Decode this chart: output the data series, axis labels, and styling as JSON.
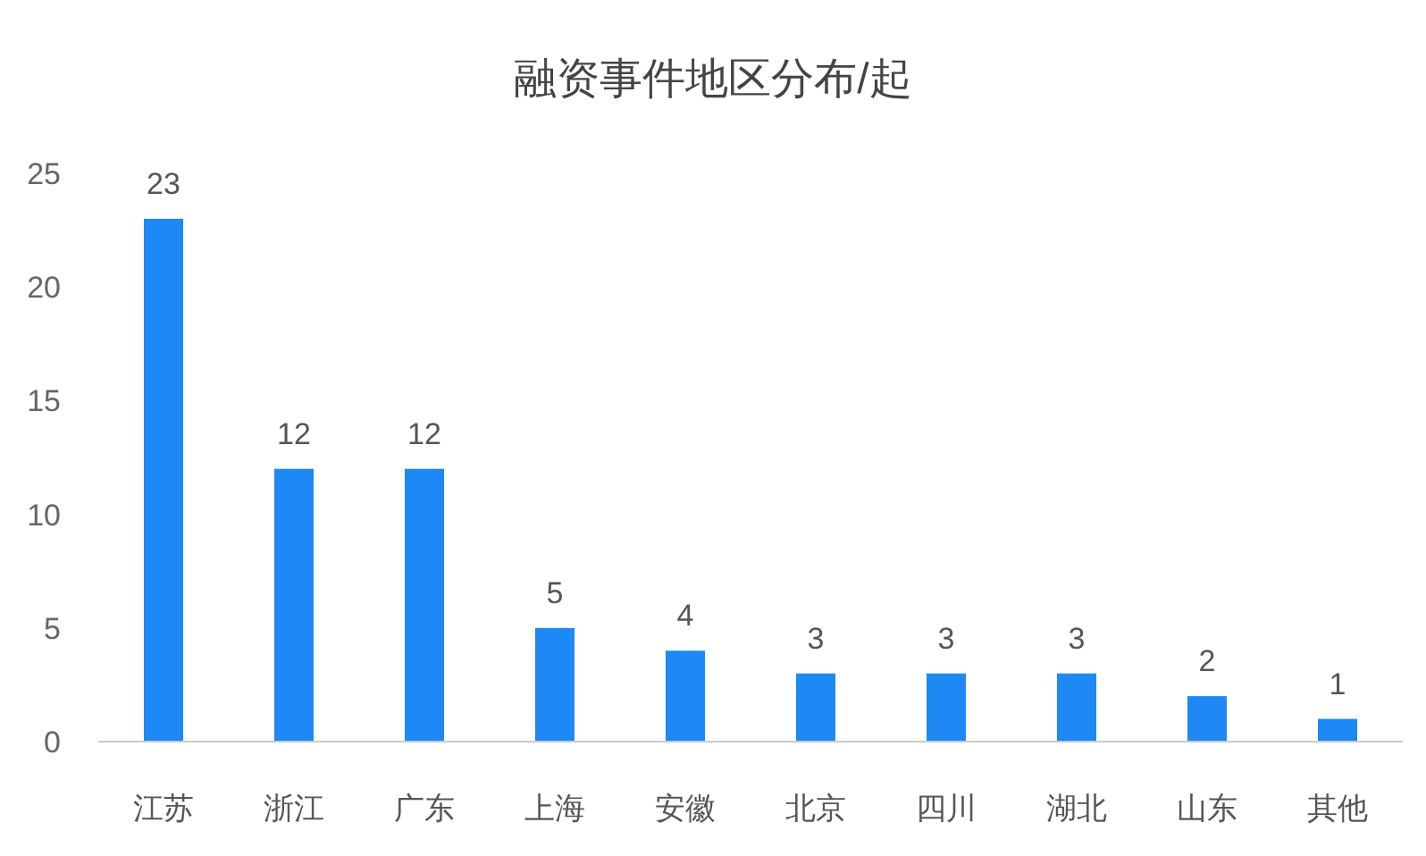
{
  "chart_data": {
    "type": "bar",
    "title": "融资事件地区分布/起",
    "categories": [
      "江苏",
      "浙江",
      "广东",
      "上海",
      "安徽",
      "北京",
      "四川",
      "湖北",
      "山东",
      "其他"
    ],
    "values": [
      23,
      12,
      12,
      5,
      4,
      3,
      3,
      3,
      2,
      1
    ],
    "color": "#1e88f5",
    "ylim": [
      0,
      25
    ],
    "yticks": [
      0,
      5,
      10,
      15,
      20,
      25
    ],
    "grid": false,
    "data_labels": true
  }
}
